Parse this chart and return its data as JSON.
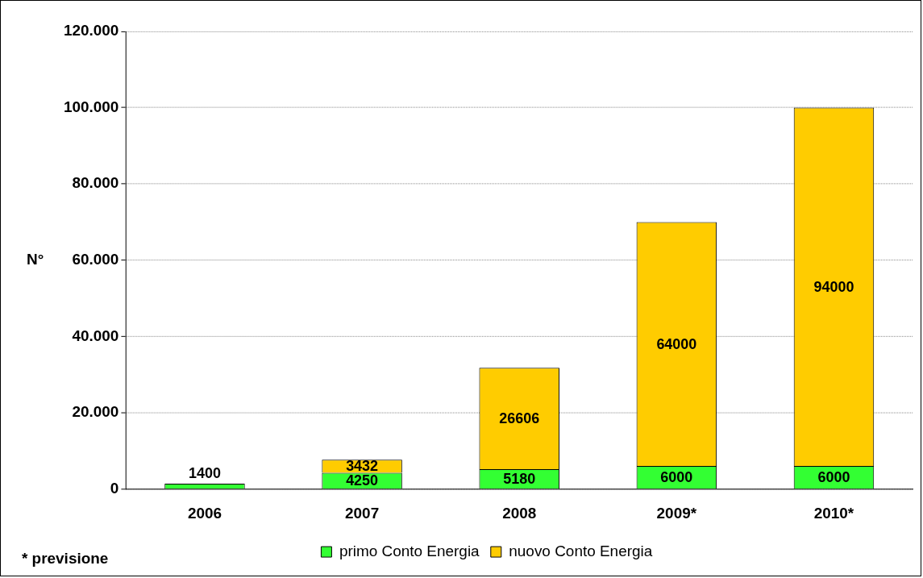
{
  "chart_data": {
    "type": "bar",
    "stacked": true,
    "ylabel": "N°",
    "categories": [
      "2006",
      "2007",
      "2008",
      "2009*",
      "2010*"
    ],
    "series": [
      {
        "name": "primo Conto Energia",
        "color": "#33ff33",
        "values": [
          1400,
          4250,
          5180,
          6000,
          6000
        ]
      },
      {
        "name": "nuovo Conto Energia",
        "color": "#ffcc00",
        "values": [
          null,
          3432,
          26606,
          64000,
          94000
        ]
      }
    ],
    "ylim": [
      0,
      120000
    ],
    "yticks": [
      {
        "value": 0,
        "label": "0"
      },
      {
        "value": 20000,
        "label": "20.000"
      },
      {
        "value": 40000,
        "label": "40.000"
      },
      {
        "value": 60000,
        "label": "60.000"
      },
      {
        "value": 80000,
        "label": "80.000"
      },
      {
        "value": 100000,
        "label": "100.000"
      },
      {
        "value": 120000,
        "label": "120.000"
      }
    ],
    "grid": "y",
    "legend": "bottom",
    "data_labels": true,
    "annotations": [
      "* previsione"
    ]
  }
}
